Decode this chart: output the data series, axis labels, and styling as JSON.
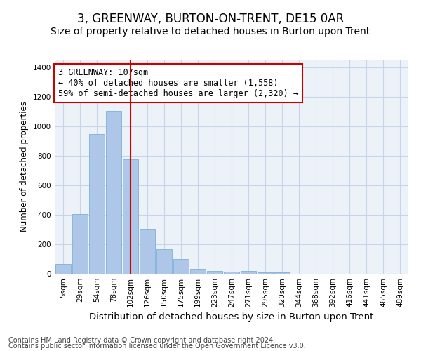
{
  "title": "3, GREENWAY, BURTON-ON-TRENT, DE15 0AR",
  "subtitle": "Size of property relative to detached houses in Burton upon Trent",
  "xlabel": "Distribution of detached houses by size in Burton upon Trent",
  "ylabel": "Number of detached properties",
  "categories": [
    "5sqm",
    "29sqm",
    "54sqm",
    "78sqm",
    "102sqm",
    "126sqm",
    "150sqm",
    "175sqm",
    "199sqm",
    "223sqm",
    "247sqm",
    "271sqm",
    "295sqm",
    "320sqm",
    "344sqm",
    "368sqm",
    "392sqm",
    "416sqm",
    "441sqm",
    "465sqm",
    "489sqm"
  ],
  "bar_heights": [
    65,
    405,
    945,
    1105,
    775,
    305,
    165,
    100,
    35,
    18,
    15,
    18,
    10,
    10,
    0,
    0,
    0,
    0,
    0,
    0,
    0
  ],
  "bar_color": "#aec6e8",
  "bar_edge_color": "#6aaad4",
  "grid_color": "#c8d4e8",
  "bg_color": "#edf2f9",
  "vline_x": 4.0,
  "vline_color": "#cc0000",
  "annotation_text": "3 GREENWAY: 107sqm\n← 40% of detached houses are smaller (1,558)\n59% of semi-detached houses are larger (2,320) →",
  "annotation_box_color": "#cc0000",
  "ylim": [
    0,
    1450
  ],
  "yticks": [
    0,
    200,
    400,
    600,
    800,
    1000,
    1200,
    1400
  ],
  "footer1": "Contains HM Land Registry data © Crown copyright and database right 2024.",
  "footer2": "Contains public sector information licensed under the Open Government Licence v3.0.",
  "title_fontsize": 12,
  "subtitle_fontsize": 10,
  "xlabel_fontsize": 9.5,
  "ylabel_fontsize": 8.5,
  "tick_fontsize": 7.5,
  "annotation_fontsize": 8.5,
  "footer_fontsize": 7
}
